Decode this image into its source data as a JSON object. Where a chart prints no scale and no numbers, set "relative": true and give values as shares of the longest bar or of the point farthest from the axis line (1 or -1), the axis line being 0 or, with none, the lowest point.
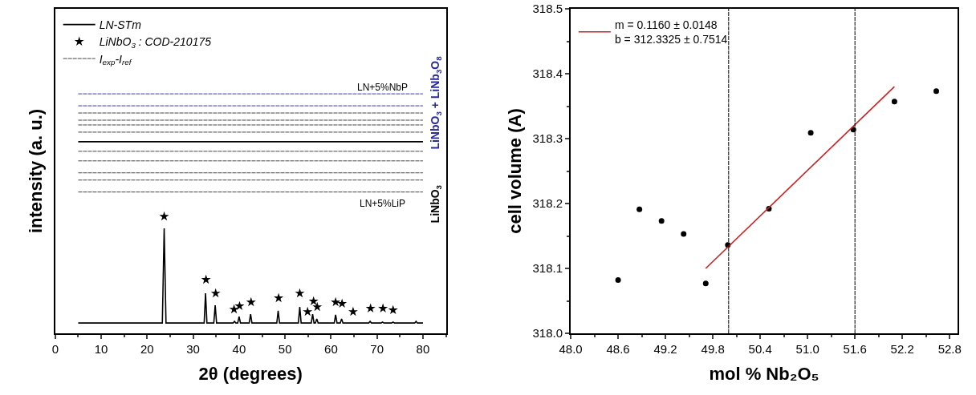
{
  "chart_data": [
    {
      "type": "line",
      "xlabel": "2θ (degrees)",
      "ylabel": "intensity (a. u.)",
      "relative": true,
      "tick_labels": "x",
      "legend": "top left",
      "xlim": [
        0,
        85
      ],
      "xticks": [
        0,
        10,
        20,
        30,
        40,
        50,
        60,
        70,
        80
      ],
      "series": [
        {
          "name": "LN-STm",
          "color": "#000000",
          "line_style": "solid",
          "x": [
            5,
            80
          ],
          "values": [
            0.8,
            0.8
          ]
        },
        {
          "color": "#000000",
          "line_style": "solid",
          "x": [
            5,
            23.3,
            23.7,
            24.1,
            32.4,
            32.7,
            33.0,
            34.5,
            34.8,
            35.1,
            38.7,
            39.0,
            39.3,
            39.7,
            40.0,
            40.3,
            42.2,
            42.5,
            42.8,
            48.2,
            48.5,
            48.8,
            52.9,
            53.2,
            53.5,
            55.7,
            56.0,
            56.3,
            56.6,
            56.9,
            57.2,
            60.7,
            61.0,
            61.3,
            62.0,
            62.3,
            62.6,
            68.2,
            68.5,
            68.8,
            70.9,
            71.2,
            71.5,
            73.2,
            73.5,
            73.8,
            78.2,
            78.5,
            78.8,
            80
          ],
          "values": [
            0.043,
            0.043,
            0.438,
            0.043,
            0.043,
            0.167,
            0.043,
            0.043,
            0.117,
            0.043,
            0.043,
            0.05,
            0.043,
            0.043,
            0.07,
            0.043,
            0.043,
            0.08,
            0.043,
            0.043,
            0.094,
            0.043,
            0.043,
            0.11,
            0.043,
            0.043,
            0.08,
            0.043,
            0.043,
            0.06,
            0.043,
            0.043,
            0.077,
            0.043,
            0.043,
            0.06,
            0.043,
            0.043,
            0.05,
            0.043,
            0.043,
            0.047,
            0.043,
            0.043,
            0.047,
            0.043,
            0.043,
            0.05,
            0.043,
            0.043
          ]
        },
        {
          "type": "scatter",
          "name": "LiNbO$_{3}$ : COD-210175",
          "color": "#000000",
          "marker": "star",
          "x": [
            23.7,
            32.8,
            34.9,
            38.9,
            40.1,
            42.6,
            48.6,
            53.2,
            54.9,
            56.2,
            57.0,
            61.0,
            62.4,
            64.8,
            68.6,
            71.3,
            73.5
          ],
          "values": [
            0.488,
            0.224,
            0.167,
            0.1,
            0.114,
            0.13,
            0.147,
            0.167,
            0.09,
            0.134,
            0.11,
            0.13,
            0.124,
            0.09,
            0.104,
            0.104,
            0.097
          ]
        },
        {
          "color": "#3a3aa0",
          "line_style": "dashed",
          "x": [
            5,
            80
          ],
          "values": [
            1.0,
            1.0
          ]
        },
        {
          "color": "#3a3aa0",
          "line_style": "dashed",
          "x": [
            5,
            80
          ],
          "values": [
            0.95,
            0.95
          ]
        },
        {
          "color": "#444444",
          "line_style": "dashed",
          "x": [
            5,
            80
          ],
          "values": [
            0.92,
            0.92
          ]
        },
        {
          "color": "#444444",
          "line_style": "dashed",
          "x": [
            5,
            80
          ],
          "values": [
            0.89,
            0.89
          ]
        },
        {
          "color": "#444444",
          "line_style": "dashed",
          "x": [
            5,
            80
          ],
          "values": [
            0.87,
            0.87
          ]
        },
        {
          "color": "#444444",
          "line_style": "dashed",
          "x": [
            5,
            80
          ],
          "values": [
            0.84,
            0.84
          ]
        },
        {
          "color": "#444444",
          "line_style": "dashed",
          "x": [
            5,
            80
          ],
          "values": [
            0.76,
            0.76
          ]
        },
        {
          "color": "#444444",
          "line_style": "dashed",
          "x": [
            5,
            80
          ],
          "values": [
            0.72,
            0.72
          ]
        },
        {
          "color": "#444444",
          "line_style": "dashed",
          "x": [
            5,
            80
          ],
          "values": [
            0.67,
            0.67
          ]
        },
        {
          "color": "#444444",
          "line_style": "dashed",
          "x": [
            5,
            80
          ],
          "values": [
            0.64,
            0.64
          ]
        },
        {
          "name": "I$_{exp}$-I$_{ref}$",
          "color": "#444444",
          "line_style": "dashed",
          "x": [
            5,
            80
          ],
          "values": [
            0.59,
            0.59
          ]
        }
      ],
      "annotations": [
        "LN+5%NbP",
        "LN+5%LiP",
        "LiNbO$_{3}$ + LiNb$_{3}$O$_{8}$",
        "LiNbO$_{3}$"
      ]
    },
    {
      "type": "scatter",
      "xlabel": "mol % Nb₂O₅",
      "ylabel": "cell volume (A)",
      "legend": "top left",
      "xlim": [
        48.0,
        52.9
      ],
      "ylim": [
        318.0,
        318.5
      ],
      "xticks": [
        {
          "value": 48.0,
          "label": "48.0"
        },
        48.6,
        49.2,
        49.8,
        50.4,
        {
          "value": 51.0,
          "label": "51.0"
        },
        51.6,
        52.2,
        52.8
      ],
      "yticks": [
        {
          "value": 318.0,
          "label": "318.0"
        },
        318.1,
        318.2,
        318.3,
        318.4,
        318.5
      ],
      "series": [
        {
          "color": "#000000",
          "marker": "circle",
          "x": [
            48.6,
            48.87,
            49.15,
            49.43,
            49.71,
            49.99,
            50.51,
            51.04,
            51.58,
            52.1,
            52.63
          ],
          "values": [
            318.082,
            318.191,
            318.173,
            318.153,
            318.077,
            318.136,
            318.192,
            318.309,
            318.314,
            318.357,
            318.373
          ]
        },
        {
          "type": "line",
          "name": "m = 0.1160 ± 0.0148\nb = 312.3325 ± 0.7514",
          "color": "#cc2222",
          "line_style": "solid",
          "x": [
            49.71,
            52.1
          ],
          "values": [
            318.1,
            318.38
          ]
        }
      ],
      "ref_lines": [
        {
          "axis": "x",
          "value": 50.0,
          "color": "#000000",
          "line_style": "dashed"
        },
        {
          "axis": "x",
          "value": 51.6,
          "color": "#000000",
          "line_style": "dashed"
        }
      ]
    }
  ]
}
